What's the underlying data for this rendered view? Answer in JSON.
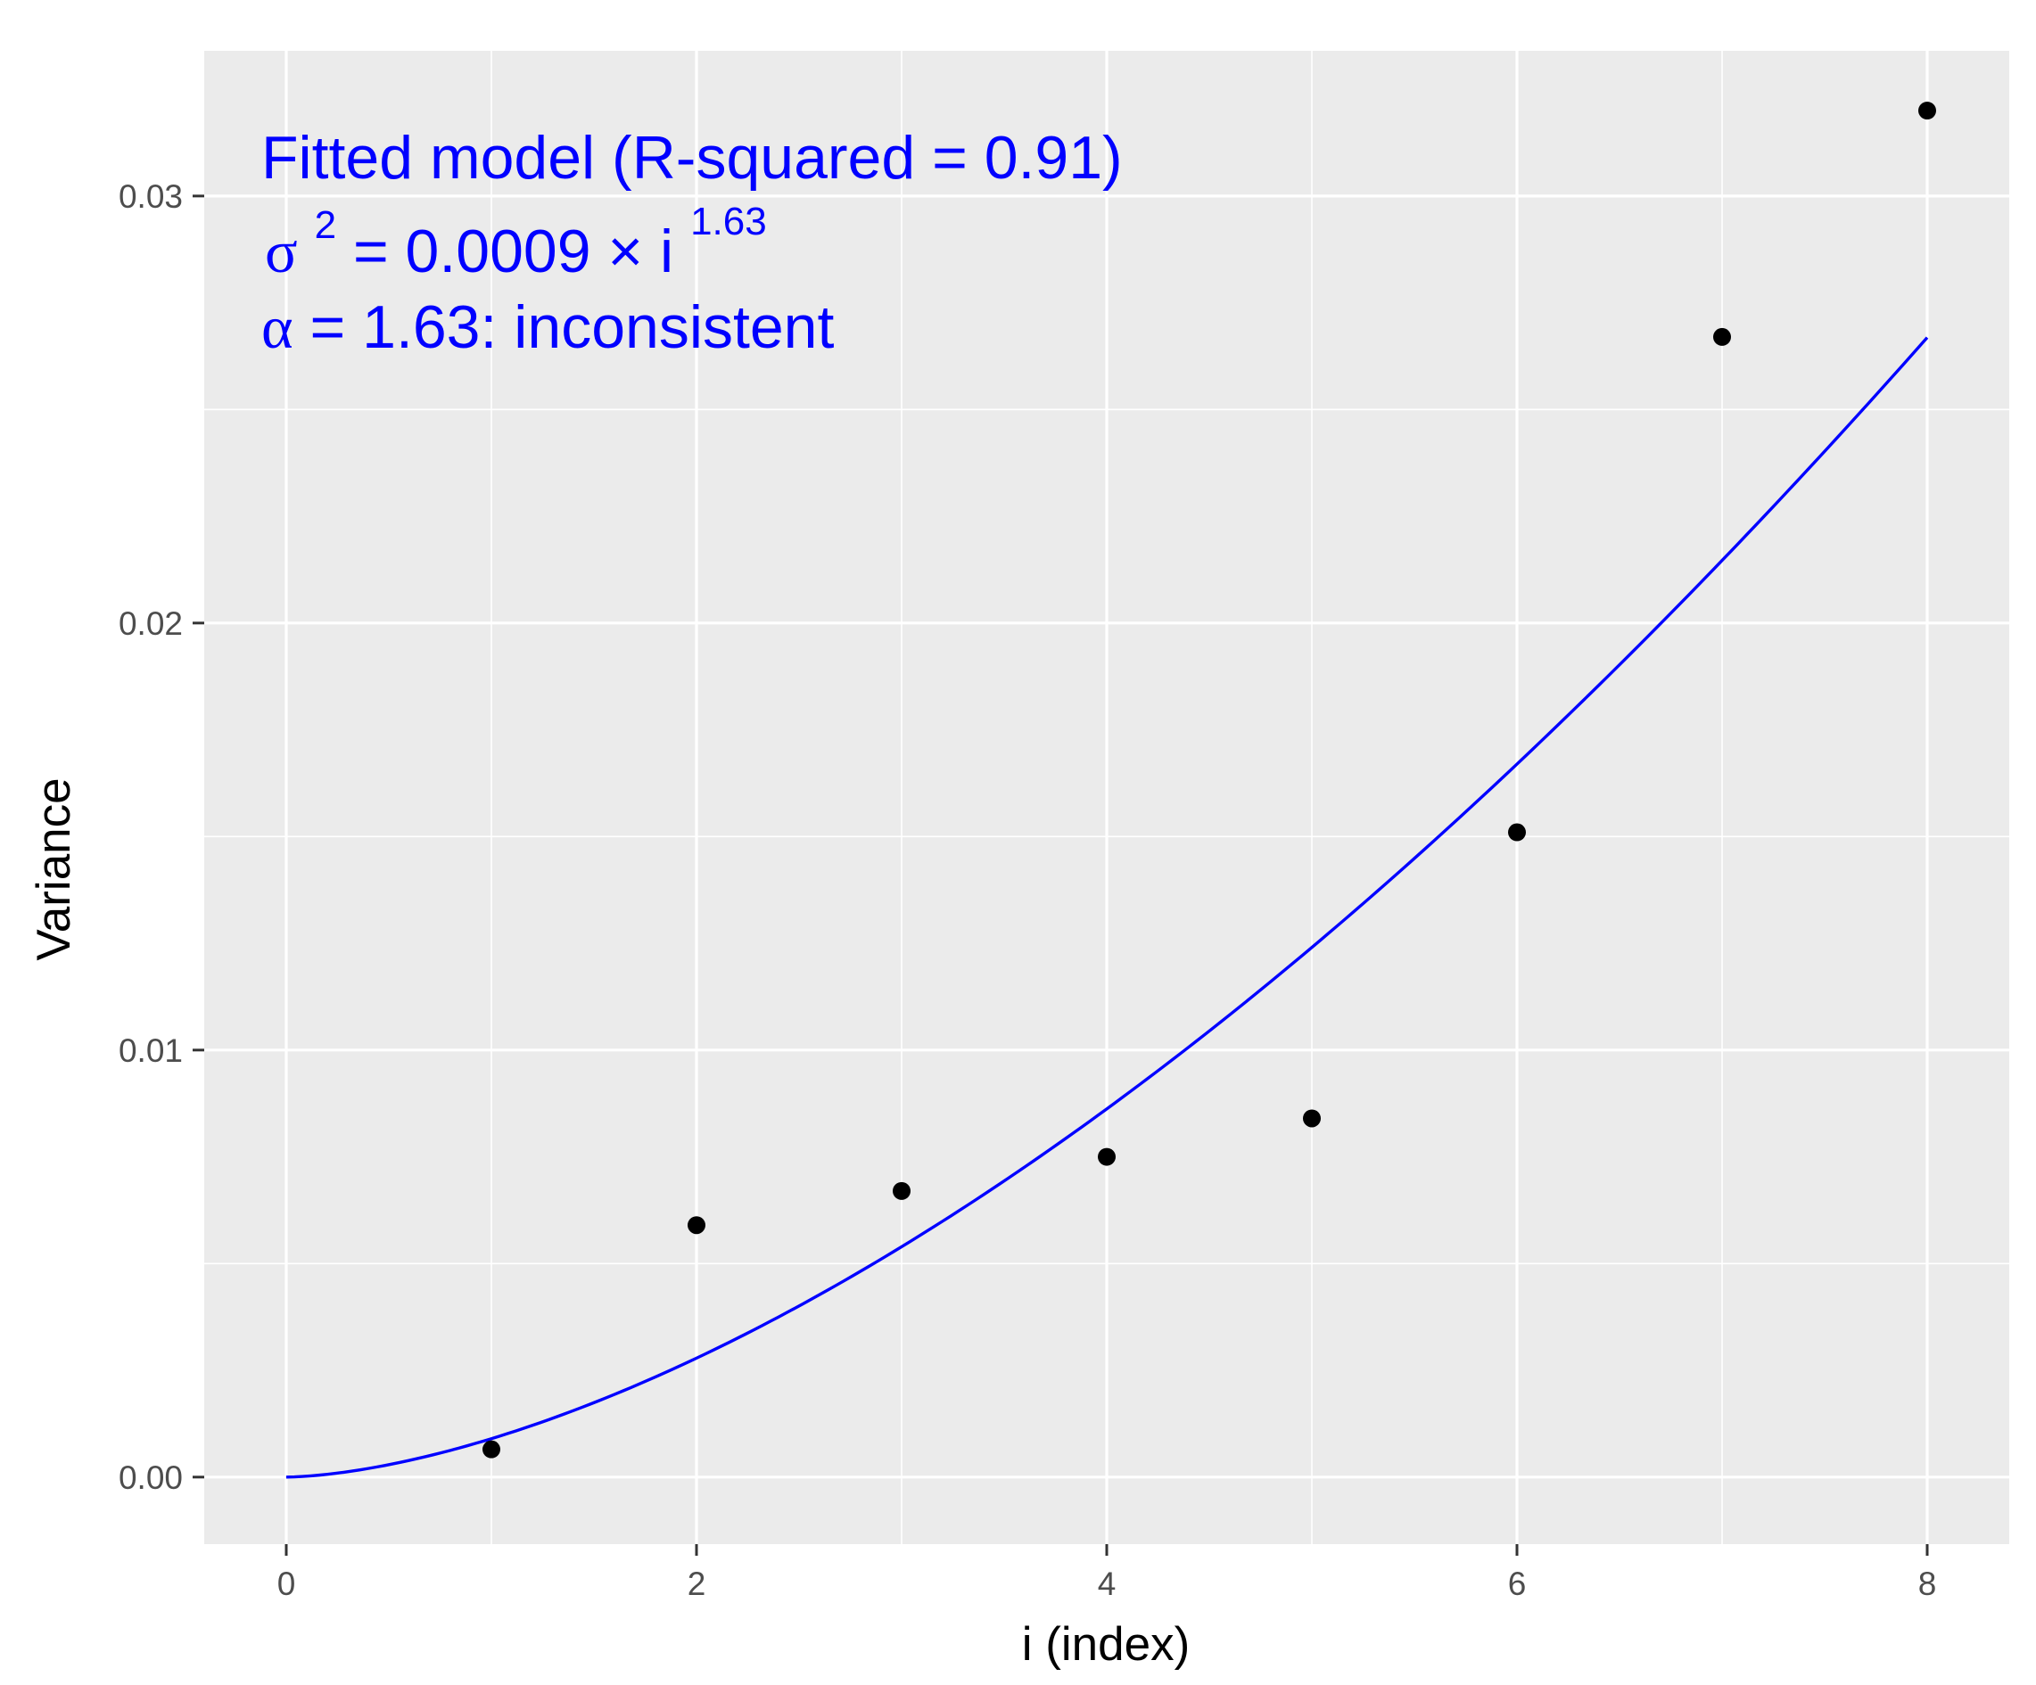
{
  "chart_data": {
    "type": "scatter",
    "xlabel": "i (index)",
    "ylabel": "Variance",
    "xlim": [
      -0.4,
      8.4
    ],
    "ylim": [
      -0.00157,
      0.0334
    ],
    "x_ticks": [
      0,
      2,
      4,
      6,
      8
    ],
    "x_tick_labels": [
      "0",
      "2",
      "4",
      "6",
      "8"
    ],
    "y_ticks": [
      0.0,
      0.01,
      0.02,
      0.03
    ],
    "y_tick_labels": [
      "0.00",
      "0.01",
      "0.02",
      "0.03"
    ],
    "grid": true,
    "legend": "none",
    "points": {
      "x": [
        1,
        2,
        3,
        4,
        5,
        6,
        7,
        8
      ],
      "y": [
        0.00065,
        0.0059,
        0.0067,
        0.0075,
        0.0084,
        0.0151,
        0.0267,
        0.032
      ],
      "color": "#000000"
    },
    "fit": {
      "model": "power",
      "coefficient": 0.0009,
      "exponent": 1.63,
      "x_range": [
        0,
        8
      ],
      "color": "#0000ff"
    },
    "annotation": {
      "line1": "Fitted model (R-squared = 0.91)",
      "line2_sigma": "σ",
      "line2_sup": "2",
      "line2_eq": " = 0.0009 × i",
      "line2_exp": "1.63",
      "line3_alpha": "α",
      "line3_rest": " = 1.63: inconsistent",
      "color": "#0000ff"
    },
    "colors": {
      "panel": "#ebebeb",
      "grid": "#ffffff",
      "ticks": "#333333"
    }
  }
}
